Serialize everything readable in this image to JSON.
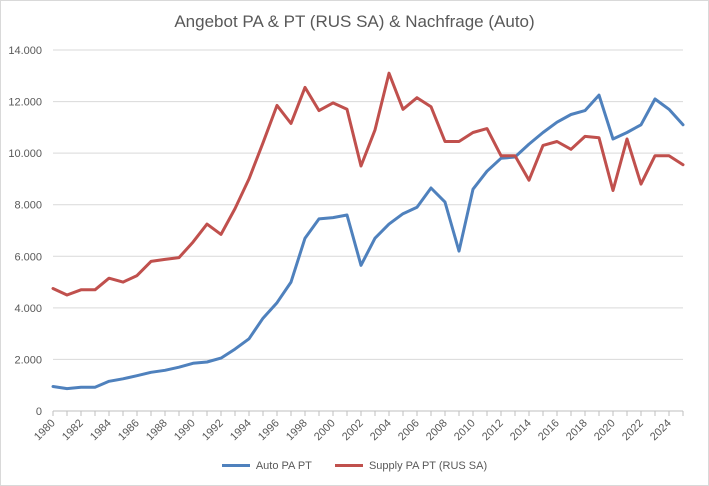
{
  "chart_data": {
    "type": "line",
    "title": "Angebot PA & PT (RUS SA) & Nachfrage (Auto)",
    "xlabel": "",
    "ylabel": "",
    "ylim": [
      0,
      14000
    ],
    "yticks": [
      0,
      2000,
      4000,
      6000,
      8000,
      10000,
      12000,
      14000
    ],
    "ytick_labels": [
      "0",
      "2.000",
      "4.000",
      "6.000",
      "8.000",
      "10.000",
      "12.000",
      "14.000"
    ],
    "xtick_labels": [
      "1980",
      "1982",
      "1984",
      "1986",
      "1988",
      "1990",
      "1992",
      "1994",
      "1996",
      "1998",
      "2000",
      "2002",
      "2004",
      "2006",
      "2008",
      "2010",
      "2012",
      "2014",
      "2016",
      "2018",
      "2020",
      "2022",
      "2024"
    ],
    "grid": true,
    "legend_position": "bottom",
    "x": [
      1980,
      1981,
      1982,
      1983,
      1984,
      1985,
      1986,
      1987,
      1988,
      1989,
      1990,
      1991,
      1992,
      1993,
      1994,
      1995,
      1996,
      1997,
      1998,
      1999,
      2000,
      2001,
      2002,
      2003,
      2004,
      2005,
      2006,
      2007,
      2008,
      2009,
      2010,
      2011,
      2012,
      2013,
      2014,
      2015,
      2016,
      2017,
      2018,
      2019,
      2020,
      2021,
      2022,
      2023,
      2024,
      2025
    ],
    "series": [
      {
        "name": "Auto PA PT",
        "color": "#4f81bd",
        "values": [
          950,
          870,
          920,
          920,
          1150,
          1250,
          1370,
          1500,
          1580,
          1700,
          1850,
          1900,
          2050,
          2400,
          2800,
          3600,
          4200,
          5000,
          6700,
          7450,
          7500,
          7600,
          5650,
          6700,
          7250,
          7650,
          7900,
          8650,
          8100,
          6200,
          8600,
          9300,
          9800,
          9850,
          10350,
          10800,
          11200,
          11500,
          11650,
          12250,
          10550,
          10800,
          11100,
          12100,
          11700,
          11100
        ]
      },
      {
        "name": "Supply PA PT (RUS SA)",
        "color": "#c0504d",
        "values": [
          4750,
          4500,
          4700,
          4700,
          5150,
          5000,
          5250,
          5800,
          5880,
          5950,
          6550,
          7250,
          6850,
          7850,
          9000,
          10400,
          11850,
          11150,
          12550,
          11650,
          11950,
          11700,
          9500,
          10900,
          13100,
          11700,
          12150,
          11800,
          10450,
          10450,
          10800,
          10950,
          9900,
          9900,
          8950,
          10300,
          10450,
          10150,
          10650,
          10600,
          8550,
          10550,
          8800,
          9900,
          9900,
          9550
        ]
      }
    ]
  }
}
